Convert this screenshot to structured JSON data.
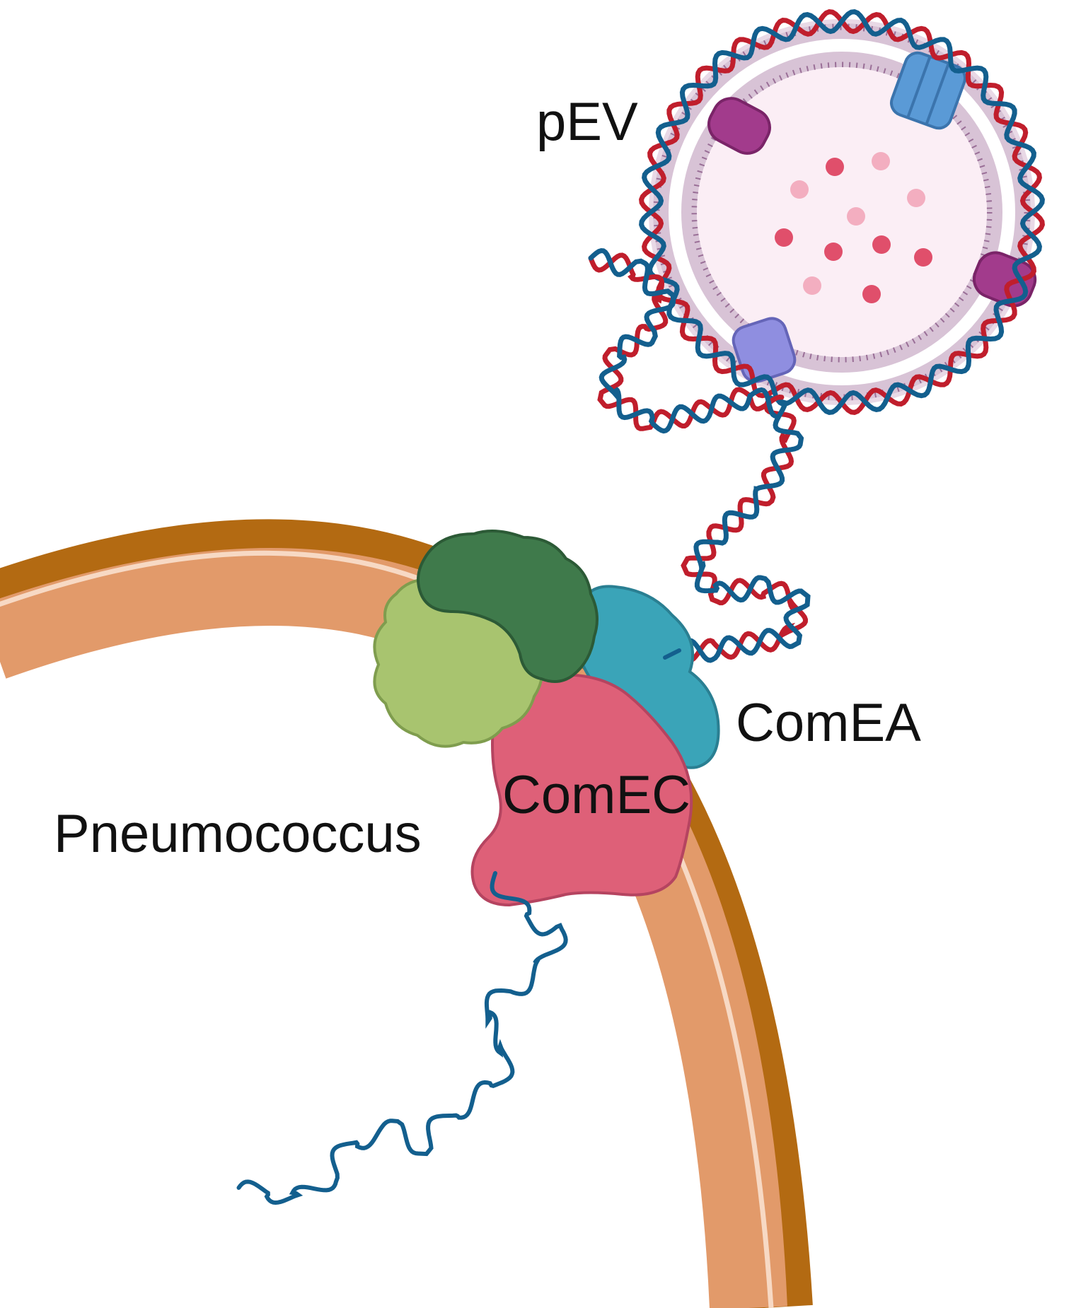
{
  "labels": {
    "pev": "pEV",
    "comea": "ComEA",
    "comec": "ComEC",
    "pneumococcus": "Pneumococcus"
  },
  "colors": {
    "background": "#ffffff",
    "cell_wall_outer": "#b36a12",
    "cell_wall_body": "#e29a6a",
    "cell_wall_highlight": "#f7d9c4",
    "dna_strand_a": "#c01e2c",
    "dna_strand_b": "#135f8e",
    "vesicle_lumen": "#fbeef5",
    "vesicle_lipid": "#9a6f97",
    "vesicle_cargo": "#e04f6b",
    "vesicle_cargo_light": "#f3aec0",
    "protein_magenta": "#a23b8c",
    "protein_blue": "#5a9ad6",
    "protein_lavender": "#8f8ee0",
    "protein_dark_green": "#3f7a4b",
    "protein_light_green": "#a8c46f",
    "comea_teal": "#3aa4b8",
    "comec_pink": "#de6078"
  }
}
